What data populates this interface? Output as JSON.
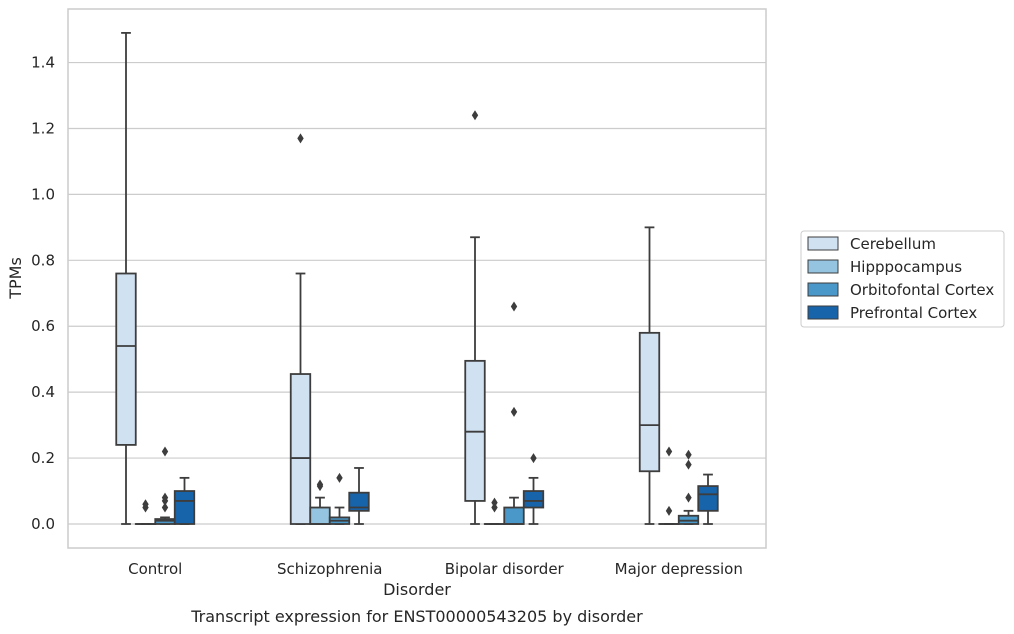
{
  "chart_data": {
    "type": "box",
    "xlabel": "Disorder",
    "ylabel": "TPMs",
    "caption": "Transcript expression for ENST00000543205 by disorder",
    "ylim": [
      -0.07,
      1.57
    ],
    "yticks": [
      0.0,
      0.2,
      0.4,
      0.6,
      0.8,
      1.0,
      1.2,
      1.4
    ],
    "ytick_labels": [
      "0.0",
      "0.2",
      "0.4",
      "0.6",
      "0.8",
      "1.0",
      "1.2",
      "1.4"
    ],
    "grid": "horizontal",
    "legend_position": "right",
    "categories": [
      "Control",
      "Schizophrenia",
      "Bipolar disorder",
      "Major depression"
    ],
    "series": [
      {
        "name": "Cerebellum",
        "color": "#d0e1f2",
        "boxes": [
          {
            "whislo": 0.0,
            "q1": 0.24,
            "med": 0.54,
            "q3": 0.76,
            "whishi": 1.49,
            "fliers": []
          },
          {
            "whislo": 0.0,
            "q1": 0.0,
            "med": 0.2,
            "q3": 0.455,
            "whishi": 0.76,
            "fliers": [
              1.17
            ]
          },
          {
            "whislo": 0.0,
            "q1": 0.07,
            "med": 0.28,
            "q3": 0.495,
            "whishi": 0.87,
            "fliers": [
              1.24
            ]
          },
          {
            "whislo": 0.0,
            "q1": 0.16,
            "med": 0.3,
            "q3": 0.58,
            "whishi": 0.9,
            "fliers": []
          }
        ]
      },
      {
        "name": "Hipppocampus",
        "color": "#94c4df",
        "boxes": [
          {
            "whislo": 0.0,
            "q1": 0.0,
            "med": 0.0,
            "q3": 0.0,
            "whishi": 0.0,
            "fliers": [
              0.05,
              0.06
            ]
          },
          {
            "whislo": 0.0,
            "q1": 0.0,
            "med": 0.0,
            "q3": 0.05,
            "whishi": 0.08,
            "fliers": [
              0.115,
              0.12
            ]
          },
          {
            "whislo": 0.0,
            "q1": 0.0,
            "med": 0.0,
            "q3": 0.0,
            "whishi": 0.0,
            "fliers": [
              0.05,
              0.065
            ]
          },
          {
            "whislo": 0.0,
            "q1": 0.0,
            "med": 0.0,
            "q3": 0.0,
            "whishi": 0.0,
            "fliers": [
              0.04,
              0.22
            ]
          }
        ]
      },
      {
        "name": "Orbitofontal Cortex",
        "color": "#4a98c9",
        "boxes": [
          {
            "whislo": 0.0,
            "q1": 0.0,
            "med": 0.01,
            "q3": 0.015,
            "whishi": 0.02,
            "fliers": [
              0.05,
              0.07,
              0.08,
              0.22
            ]
          },
          {
            "whislo": 0.0,
            "q1": 0.0,
            "med": 0.01,
            "q3": 0.02,
            "whishi": 0.05,
            "fliers": [
              0.14
            ]
          },
          {
            "whislo": 0.0,
            "q1": 0.0,
            "med": 0.0,
            "q3": 0.05,
            "whishi": 0.08,
            "fliers": [
              0.34,
              0.66
            ]
          },
          {
            "whislo": 0.0,
            "q1": 0.0,
            "med": 0.01,
            "q3": 0.025,
            "whishi": 0.04,
            "fliers": [
              0.08,
              0.18,
              0.21
            ]
          }
        ]
      },
      {
        "name": "Prefrontal Cortex",
        "color": "#1764ab",
        "boxes": [
          {
            "whislo": 0.0,
            "q1": 0.0,
            "med": 0.07,
            "q3": 0.1,
            "whishi": 0.14,
            "fliers": []
          },
          {
            "whislo": 0.0,
            "q1": 0.04,
            "med": 0.05,
            "q3": 0.095,
            "whishi": 0.17,
            "fliers": []
          },
          {
            "whislo": 0.0,
            "q1": 0.05,
            "med": 0.07,
            "q3": 0.1,
            "whishi": 0.14,
            "fliers": [
              0.2
            ]
          },
          {
            "whislo": 0.0,
            "q1": 0.04,
            "med": 0.09,
            "q3": 0.115,
            "whishi": 0.15,
            "fliers": []
          }
        ]
      }
    ]
  }
}
